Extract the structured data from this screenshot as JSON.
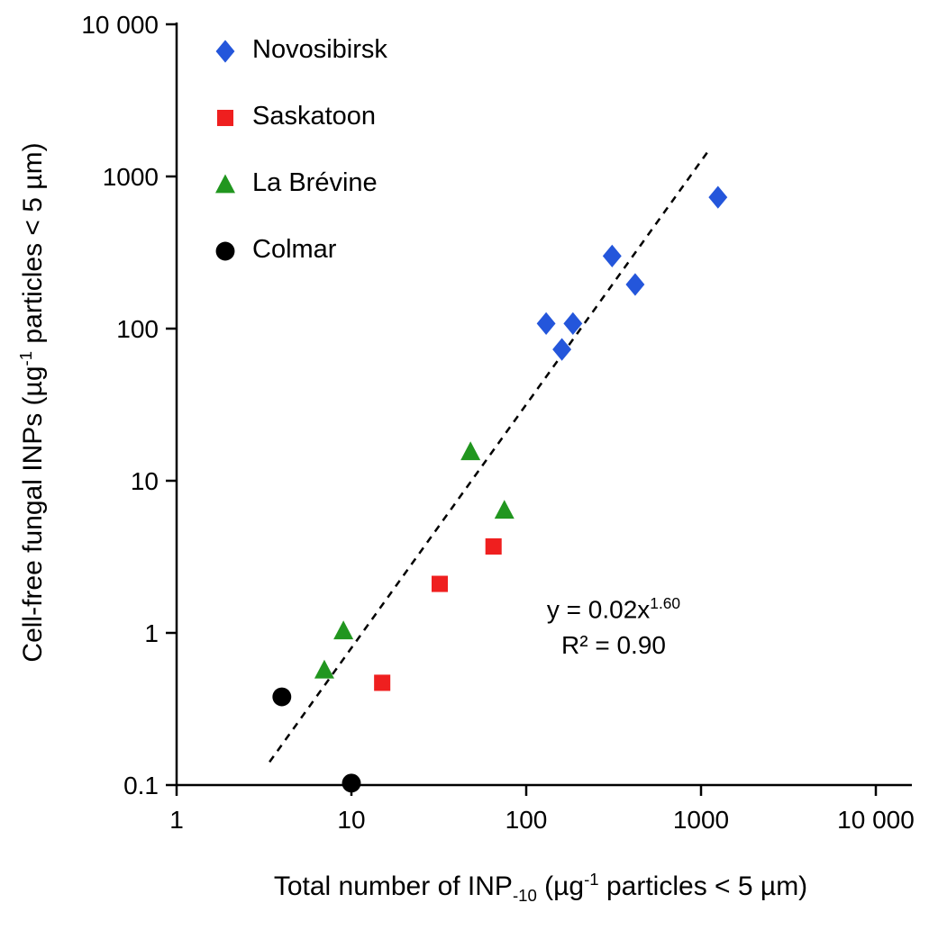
{
  "chart_data": {
    "type": "scatter",
    "scale": "log-log",
    "grid": false,
    "legend_position": "top-left-inside",
    "x_axis": {
      "label": "Total number of INP₋₁₀ (µg⁻¹ particles < 5 µm)",
      "label_pre": "Total number of INP",
      "label_sub": "-10",
      "label_mid": " (µg",
      "label_sup": "-1",
      "label_post": " particles < 5 µm)",
      "scale": "log",
      "min": 1,
      "max": 10000,
      "ticks": [
        1,
        10,
        100,
        1000,
        10000
      ],
      "tick_labels": [
        "1",
        "10",
        "100",
        "1000",
        "10 000"
      ]
    },
    "y_axis": {
      "label": "Cell-free fungal INPs (µg⁻¹ particles < 5 µm)",
      "label_pre": "Cell-free fungal INPs (µg",
      "label_sup": "-1",
      "label_post": " particles < 5 µm)",
      "scale": "log",
      "min": 0.1,
      "max": 10000,
      "ticks": [
        0.1,
        1,
        10,
        100,
        1000,
        10000
      ],
      "tick_labels": [
        "0.1",
        "1",
        "10",
        "100",
        "1000",
        "10 000"
      ]
    },
    "series": [
      {
        "name": "Novosibirsk",
        "marker": "diamond",
        "color": "#2456DB",
        "points": [
          [
            130,
            108
          ],
          [
            160,
            73
          ],
          [
            185,
            108
          ],
          [
            310,
            300
          ],
          [
            420,
            195
          ],
          [
            1250,
            730
          ]
        ]
      },
      {
        "name": "Saskatoon",
        "marker": "square",
        "color": "#EF1F1F",
        "points": [
          [
            15,
            0.47
          ],
          [
            32,
            2.1
          ],
          [
            65,
            3.7
          ]
        ]
      },
      {
        "name": "La Brévine",
        "marker": "triangle",
        "color": "#21961F",
        "points": [
          [
            7,
            0.57
          ],
          [
            9,
            1.03
          ],
          [
            48,
            15.5
          ],
          [
            75,
            6.4
          ]
        ]
      },
      {
        "name": "Colmar",
        "marker": "circle",
        "color": "#000000",
        "points": [
          [
            4,
            0.38
          ],
          [
            10,
            0.103
          ]
        ]
      }
    ],
    "trendline": {
      "style": "dashed",
      "color": "#000000",
      "coefficient": 0.02,
      "exponent": 1.6,
      "x_start": 3.4,
      "x_end": 1100
    },
    "annotation": {
      "equation_base": "y = 0.02x",
      "equation_exponent": "1.60",
      "r_squared": "R² = 0.90"
    }
  }
}
